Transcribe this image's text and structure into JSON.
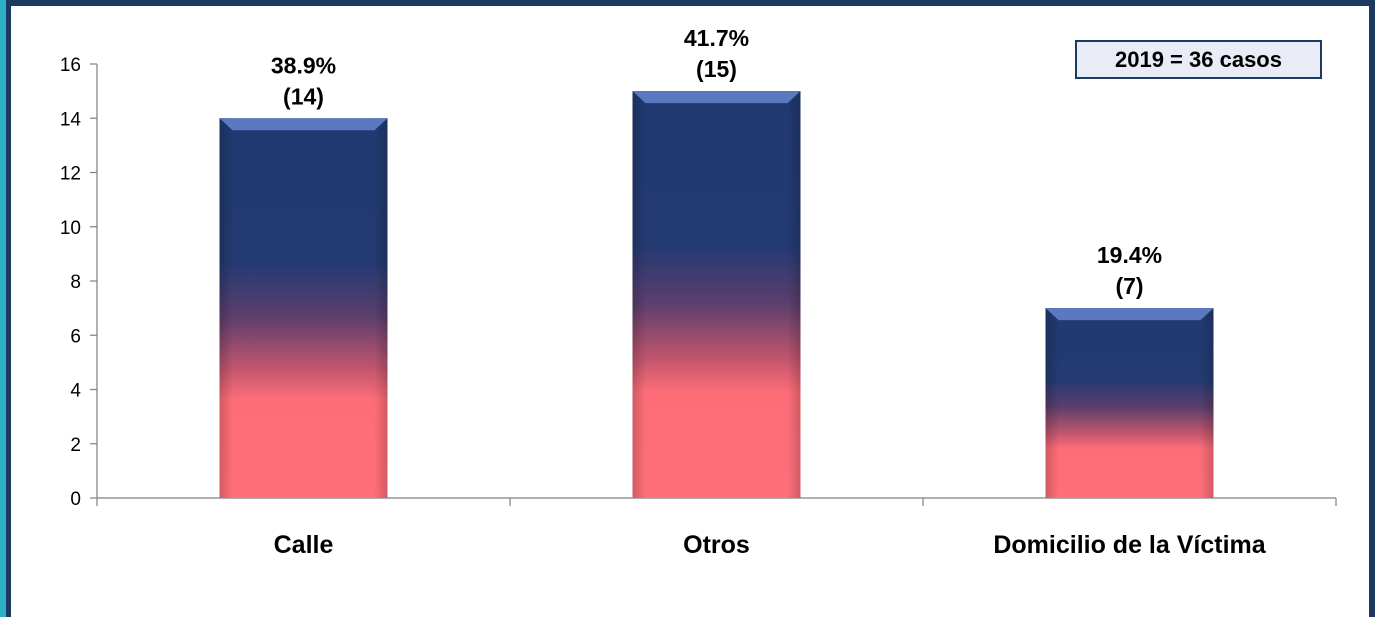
{
  "chart_data": {
    "type": "bar",
    "categories": [
      "Calle",
      "Otros",
      "Domicilio de la Víctima"
    ],
    "values": [
      14,
      15,
      7
    ],
    "data_labels": [
      {
        "pct": "38.9%",
        "count": "(14)"
      },
      {
        "pct": "41.7%",
        "count": "(15)"
      },
      {
        "pct": "19.4%",
        "count": "(7)"
      }
    ],
    "ylim": [
      0,
      16
    ],
    "yticks": [
      0,
      2,
      4,
      6,
      8,
      10,
      12,
      14,
      16
    ],
    "annotation": "2019 = 36 casos",
    "colors": {
      "bar_top": "#213a72",
      "bar_bottom": "#fe6d78",
      "bar_cap": "#5b79c0",
      "frame": "#1c3a60",
      "accent": "#2bb0c6"
    },
    "grid": false
  }
}
